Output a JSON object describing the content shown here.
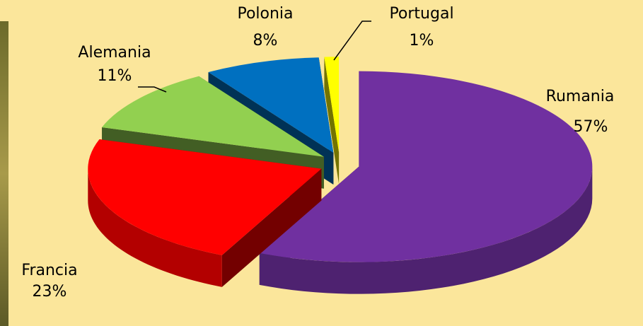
{
  "chart_data": {
    "type": "pie",
    "categories": [
      "Rumania",
      "Francia",
      "Alemania",
      "Polonia",
      "Portugal"
    ],
    "values": [
      57,
      23,
      11,
      8,
      1
    ],
    "value_labels": [
      "57%",
      "23%",
      "11%",
      "8%",
      "1%"
    ],
    "colors": [
      "#7030a0",
      "#ff0000",
      "#92d050",
      "#0070c0",
      "#ffff00"
    ],
    "exploded": true
  }
}
